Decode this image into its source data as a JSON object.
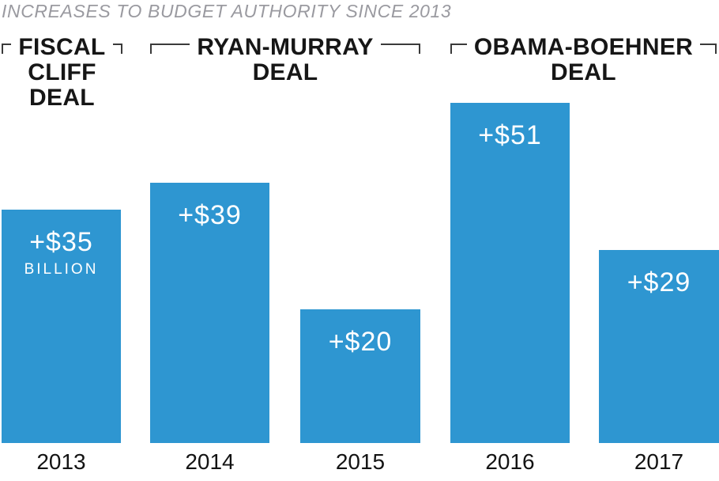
{
  "title": "INCREASES TO BUDGET AUTHORITY SINCE 2013",
  "colors": {
    "bar_blue": "#2E96D1",
    "title_gray": "#9A9AA0",
    "bracket_line": "#3A3A3A",
    "label_black": "#161616",
    "value_text": "#FFFFFF"
  },
  "chart_data": {
    "type": "bar",
    "title": "INCREASES TO BUDGET AUTHORITY SINCE 2013",
    "categories": [
      "2013",
      "2014",
      "2015",
      "2016",
      "2017"
    ],
    "values": [
      35,
      39,
      20,
      51,
      29
    ],
    "unit": "billions of USD",
    "bar_color": "#2E96D1",
    "ylim": [
      0,
      51
    ],
    "grid": false,
    "legend": false,
    "annotations": [
      {
        "label": "FISCAL CLIFF DEAL",
        "covers": [
          "2013"
        ]
      },
      {
        "label": "RYAN-MURRAY DEAL",
        "covers": [
          "2014",
          "2015"
        ]
      },
      {
        "label": "OBAMA-BOEHNER DEAL",
        "covers": [
          "2016",
          "2017"
        ]
      }
    ]
  },
  "bars": [
    {
      "year": "2013",
      "label": "+$35",
      "sublabel": "BILLION",
      "value": 35
    },
    {
      "year": "2014",
      "label": "+$39",
      "value": 39
    },
    {
      "year": "2015",
      "label": "+$20",
      "value": 20
    },
    {
      "year": "2016",
      "label": "+$51",
      "value": 51
    },
    {
      "year": "2017",
      "label": "+$29",
      "value": 29
    }
  ],
  "groups": [
    {
      "lines": [
        "FISCAL",
        "CLIFF",
        "DEAL"
      ]
    },
    {
      "lines": [
        "RYAN-MURRAY",
        "DEAL"
      ]
    },
    {
      "lines": [
        "OBAMA-BOEHNER",
        "DEAL"
      ]
    }
  ]
}
